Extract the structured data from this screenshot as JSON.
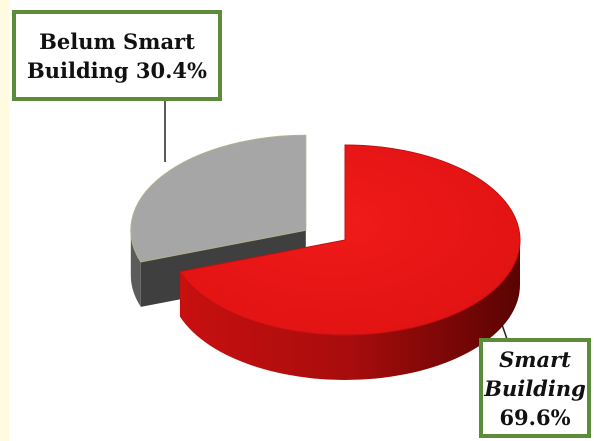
{
  "chart_data": {
    "type": "pie3d",
    "categories": [
      "Smart Building",
      "Belum Smart Building"
    ],
    "values": [
      69.6,
      30.4
    ],
    "value_labels": [
      "69.6%",
      "30.4%"
    ],
    "colors": [
      "#e51616",
      "#a6a6a6"
    ],
    "explode": [
      false,
      true
    ]
  }
}
